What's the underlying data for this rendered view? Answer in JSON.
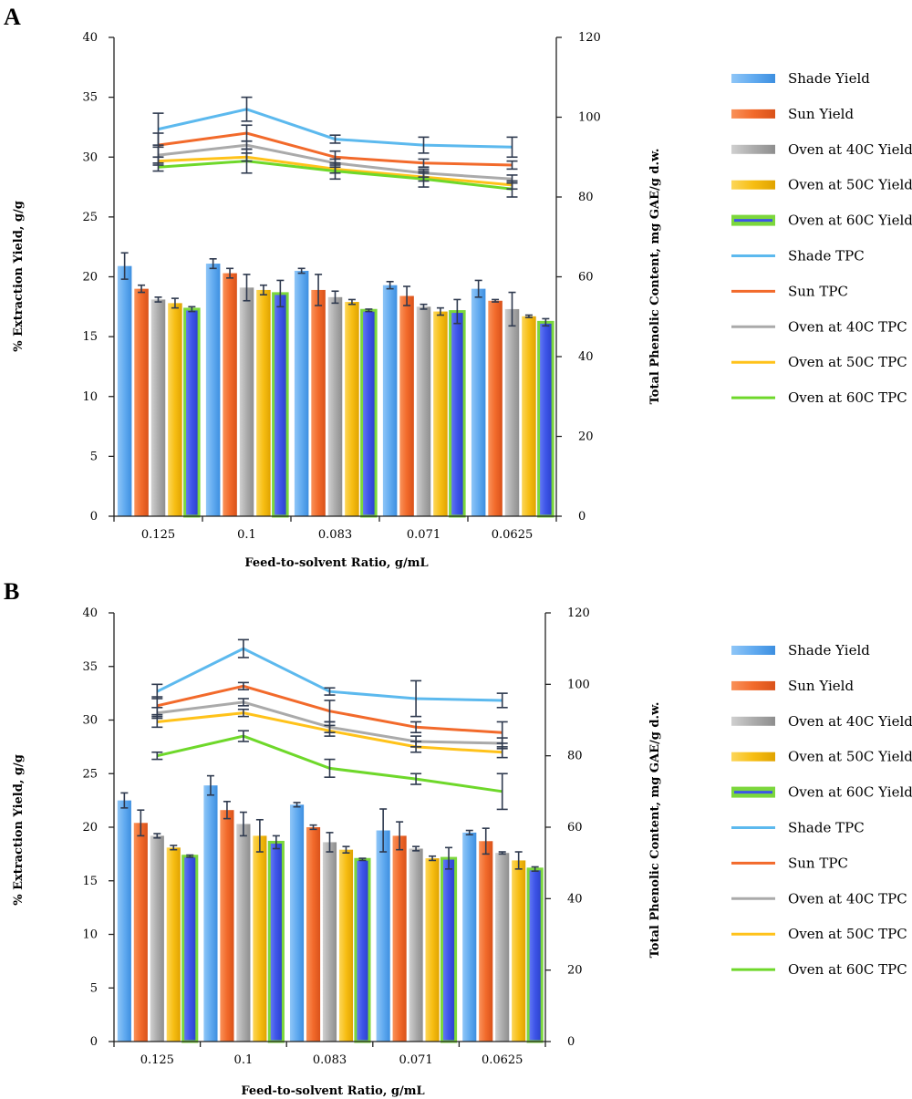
{
  "figure": {
    "legend_entries": [
      {
        "label": "Shade Yield",
        "kind": "bar",
        "color": "#5aaaf0"
      },
      {
        "label": "Sun Yield",
        "kind": "bar",
        "color": "#f26a2b"
      },
      {
        "label": "Oven at 40C Yield",
        "kind": "bar",
        "color": "#a9a9a9"
      },
      {
        "label": "Oven at 50C Yield",
        "kind": "bar",
        "color": "#f7be13"
      },
      {
        "label": "Oven at 60C Yield",
        "kind": "bar-outlined",
        "color": "#3d55e8",
        "outline": "#7cd73c"
      },
      {
        "label": "Shade TPC",
        "kind": "line",
        "color": "#5cb9ee"
      },
      {
        "label": "Sun TPC",
        "kind": "line",
        "color": "#f26a2b"
      },
      {
        "label": "Oven at 40C TPC",
        "kind": "line",
        "color": "#aaaaaa"
      },
      {
        "label": "Oven at 50C TPC",
        "kind": "line",
        "color": "#ffc21a"
      },
      {
        "label": "Oven at 60C TPC",
        "kind": "line",
        "color": "#6ed82a"
      }
    ]
  },
  "chart_data": [
    {
      "type": "bar",
      "panel": "A",
      "categories": [
        "0.125",
        "0.1",
        "0.083",
        "0.071",
        "0.0625"
      ],
      "xlabel": "Feed-to-solvent Ratio, g/mL",
      "ylabel": "% Extraction Yield, g/g",
      "y2label": "Total Phenolic Content, mg GAE/g d.w.",
      "ylim": [
        0,
        40
      ],
      "y2lim": [
        0,
        120
      ],
      "y_ticks": [
        "0",
        "5",
        "10",
        "15",
        "20",
        "25",
        "30",
        "35",
        "40"
      ],
      "y2_ticks": [
        "0",
        "20",
        "40",
        "60",
        "80",
        "100",
        "120"
      ],
      "grid": false,
      "legend_position": "right",
      "bar_series": [
        {
          "name": "Shade Yield",
          "values": [
            20.9,
            21.1,
            20.5,
            19.3,
            19.0
          ],
          "errors": [
            1.1,
            0.4,
            0.2,
            0.3,
            0.7
          ]
        },
        {
          "name": "Sun Yield",
          "values": [
            19.0,
            20.3,
            18.9,
            18.4,
            18.0
          ],
          "errors": [
            0.3,
            0.4,
            1.3,
            0.8,
            0.1
          ]
        },
        {
          "name": "Oven at 40C Yield",
          "values": [
            18.1,
            19.1,
            18.3,
            17.5,
            17.3
          ],
          "errors": [
            0.2,
            1.1,
            0.5,
            0.2,
            1.4
          ]
        },
        {
          "name": "Oven at 50C Yield",
          "values": [
            17.8,
            18.9,
            17.9,
            17.1,
            16.7
          ],
          "errors": [
            0.4,
            0.4,
            0.2,
            0.3,
            0.1
          ]
        },
        {
          "name": "Oven at 60C Yield",
          "values": [
            17.3,
            18.6,
            17.2,
            17.1,
            16.2
          ],
          "errors": [
            0.2,
            1.1,
            0.1,
            1.0,
            0.3
          ]
        }
      ],
      "line_series": [
        {
          "name": "Shade TPC",
          "values": [
            97.0,
            102.0,
            94.5,
            93.0,
            92.5
          ],
          "errors": [
            4.0,
            3.0,
            1.0,
            2.0,
            2.5
          ]
        },
        {
          "name": "Sun TPC",
          "values": [
            93.0,
            96.0,
            90.0,
            88.5,
            88.0
          ],
          "errors": [
            3.0,
            2.0,
            1.5,
            1.0,
            1.0
          ]
        },
        {
          "name": "Oven at 40C TPC",
          "values": [
            90.5,
            93.0,
            88.5,
            86.0,
            84.5
          ],
          "errors": [
            2.0,
            1.0,
            1.0,
            1.0,
            1.0
          ]
        },
        {
          "name": "Oven at 50C TPC",
          "values": [
            89.0,
            90.0,
            87.0,
            85.0,
            83.0
          ],
          "errors": [
            1.0,
            1.0,
            1.0,
            1.0,
            1.0
          ]
        },
        {
          "name": "Oven at 60C TPC",
          "values": [
            87.5,
            89.0,
            86.5,
            84.5,
            82.0
          ],
          "errors": [
            1.0,
            3.0,
            2.0,
            2.0,
            2.0
          ]
        }
      ]
    },
    {
      "type": "bar",
      "panel": "B",
      "categories": [
        "0.125",
        "0.1",
        "0.083",
        "0.071",
        "0.0625"
      ],
      "xlabel": "Feed-to-solvent Ratio, g/mL",
      "ylabel": "% Extraction Yield, g/g",
      "y2label": "Total Phenolic Content, mg GAE/g d.w.",
      "ylim": [
        0,
        40
      ],
      "y2lim": [
        0,
        120
      ],
      "y_ticks": [
        "0",
        "5",
        "10",
        "15",
        "20",
        "25",
        "30",
        "35",
        "40"
      ],
      "y2_ticks": [
        "0",
        "20",
        "40",
        "60",
        "80",
        "100",
        "120"
      ],
      "grid": false,
      "legend_position": "right",
      "bar_series": [
        {
          "name": "Shade Yield",
          "values": [
            22.5,
            23.9,
            22.1,
            19.7,
            19.5
          ],
          "errors": [
            0.7,
            0.9,
            0.2,
            2.0,
            0.2
          ]
        },
        {
          "name": "Sun Yield",
          "values": [
            20.4,
            21.6,
            20.0,
            19.2,
            18.7
          ],
          "errors": [
            1.2,
            0.8,
            0.2,
            1.3,
            1.2
          ]
        },
        {
          "name": "Oven at 40C Yield",
          "values": [
            19.2,
            20.3,
            18.6,
            18.0,
            17.6
          ],
          "errors": [
            0.2,
            1.1,
            0.9,
            0.2,
            0.1
          ]
        },
        {
          "name": "Oven at 50C Yield",
          "values": [
            18.1,
            19.2,
            17.9,
            17.1,
            16.9
          ],
          "errors": [
            0.2,
            1.5,
            0.3,
            0.2,
            0.8
          ]
        },
        {
          "name": "Oven at 60C Yield",
          "values": [
            17.3,
            18.6,
            17.0,
            17.1,
            16.1
          ],
          "errors": [
            0.1,
            0.6,
            0.1,
            1.0,
            0.2
          ]
        }
      ],
      "line_series": [
        {
          "name": "Shade TPC",
          "values": [
            98.0,
            110.0,
            98.0,
            96.0,
            95.5
          ],
          "errors": [
            2.0,
            2.5,
            1.0,
            5.0,
            2.0
          ]
        },
        {
          "name": "Sun TPC",
          "values": [
            94.0,
            99.5,
            92.5,
            88.0,
            86.5
          ],
          "errors": [
            2.5,
            1.0,
            3.0,
            1.5,
            3.0
          ]
        },
        {
          "name": "Oven at 40C TPC",
          "values": [
            92.0,
            95.0,
            88.0,
            84.0,
            83.5
          ],
          "errors": [
            1.5,
            1.0,
            1.5,
            1.5,
            1.5
          ]
        },
        {
          "name": "Oven at 50C TPC",
          "values": [
            89.5,
            92.0,
            87.0,
            82.5,
            81.0
          ],
          "errors": [
            1.5,
            1.0,
            1.5,
            1.5,
            1.5
          ]
        },
        {
          "name": "Oven at 60C TPC",
          "values": [
            80.0,
            85.5,
            76.5,
            73.5,
            70.0
          ],
          "errors": [
            1.0,
            1.5,
            2.5,
            1.5,
            5.0
          ]
        }
      ]
    }
  ]
}
